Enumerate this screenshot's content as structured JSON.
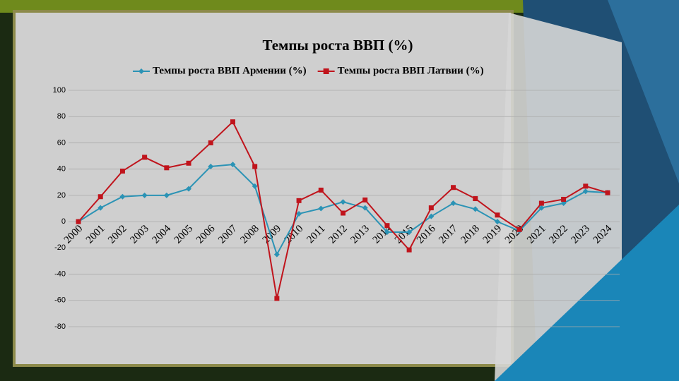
{
  "chart_data": {
    "type": "line",
    "title": "Темпы роста ВВП (%)",
    "categories": [
      "2000",
      "2001",
      "2002",
      "2003",
      "2004",
      "2005",
      "2006",
      "2007",
      "2008",
      "2009",
      "2010",
      "2011",
      "2012",
      "2013",
      "2014",
      "2015",
      "2016",
      "2017",
      "2018",
      "2019",
      "2020",
      "2021",
      "2022",
      "2023",
      "2024"
    ],
    "series": [
      {
        "name": "Темпы роста ВВП Армении (%)",
        "color": "#2b93b5",
        "marker": "diamond",
        "values": [
          0,
          10.5,
          19,
          20,
          20,
          25,
          42,
          43.5,
          27,
          -25,
          6,
          10,
          15,
          10.5,
          -8,
          -8,
          4,
          14,
          9.5,
          0,
          -7,
          10.5,
          14,
          23,
          22
        ]
      },
      {
        "name": "Темпы роста ВВП Латвии (%)",
        "color": "#c0141c",
        "marker": "square",
        "values": [
          0,
          19,
          38.5,
          49,
          41,
          44.5,
          60,
          76,
          42,
          -58.5,
          16,
          24,
          6.5,
          16.5,
          -3,
          -21.5,
          10.5,
          26,
          17.5,
          5,
          -6,
          14,
          17,
          27,
          22
        ]
      }
    ],
    "ylim": [
      -80,
      100
    ],
    "yticks": [
      -80,
      -60,
      -40,
      -20,
      0,
      20,
      40,
      60,
      80,
      100
    ],
    "grid": true,
    "legend": "top"
  }
}
